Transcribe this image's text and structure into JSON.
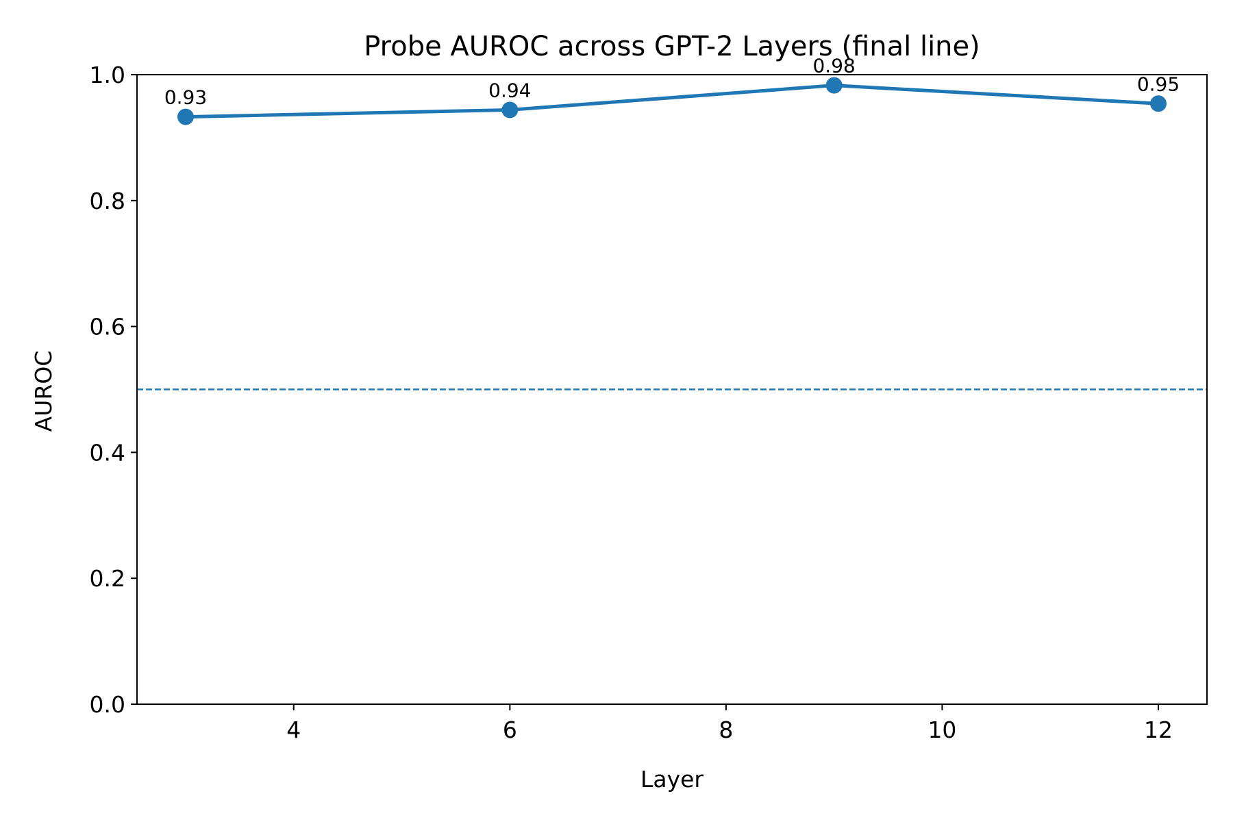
{
  "chart_data": {
    "type": "line",
    "title": "Probe AUROC across GPT-2 Layers (final line)",
    "xlabel": "Layer",
    "ylabel": "AUROC",
    "x": [
      3,
      6,
      9,
      12
    ],
    "series": [
      {
        "values": [
          0.933,
          0.944,
          0.983,
          0.954
        ],
        "labels": [
          "0.93",
          "0.94",
          "0.98",
          "0.95"
        ],
        "color": "#1f77b4",
        "marker": "circle"
      }
    ],
    "reference_line": {
      "y": 0.5,
      "style": "dashed",
      "color": "#1f77b4"
    },
    "xlim": [
      2.55,
      12.45
    ],
    "ylim": [
      0.0,
      1.0
    ],
    "xticks": [
      4,
      6,
      8,
      10,
      12
    ],
    "xtick_labels": [
      "4",
      "6",
      "8",
      "10",
      "12"
    ],
    "yticks": [
      0.0,
      0.2,
      0.4,
      0.6,
      0.8,
      1.0
    ],
    "ytick_labels": [
      "0.0",
      "0.2",
      "0.4",
      "0.6",
      "0.8",
      "1.0"
    ],
    "grid": false,
    "legend": "none"
  }
}
